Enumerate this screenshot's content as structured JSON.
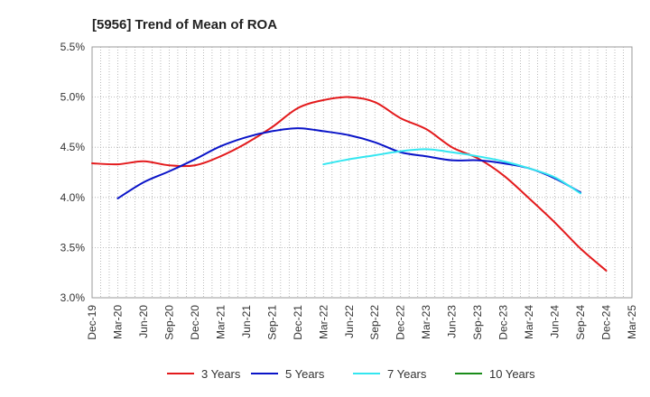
{
  "chart_data": {
    "type": "line",
    "title": "[5956]  Trend of Mean of ROA",
    "xlabel": "",
    "ylabel": "",
    "ylim": [
      3.0,
      5.5
    ],
    "y_ticks": [
      "3.0%",
      "3.5%",
      "4.0%",
      "4.5%",
      "5.0%",
      "5.5%"
    ],
    "y_tick_values": [
      3.0,
      3.5,
      4.0,
      4.5,
      5.0,
      5.5
    ],
    "x_ticks": [
      "Dec-19",
      "Mar-20",
      "Jun-20",
      "Sep-20",
      "Dec-20",
      "Mar-21",
      "Jun-21",
      "Sep-21",
      "Dec-21",
      "Mar-22",
      "Jun-22",
      "Sep-22",
      "Dec-22",
      "Mar-23",
      "Jun-23",
      "Sep-23",
      "Dec-23",
      "Mar-24",
      "Jun-24",
      "Sep-24",
      "Dec-24",
      "Mar-25"
    ],
    "grid": true,
    "legend_position": "bottom",
    "series": [
      {
        "name": "3 Years",
        "color": "#e31a1c",
        "start_index": 0,
        "values": [
          4.34,
          4.33,
          4.36,
          4.32,
          4.32,
          4.41,
          4.54,
          4.7,
          4.89,
          4.97,
          5.0,
          4.95,
          4.79,
          4.68,
          4.5,
          4.39,
          4.22,
          3.99,
          3.75,
          3.49,
          3.27
        ]
      },
      {
        "name": "5 Years",
        "color": "#0a14c8",
        "start_index": 1,
        "values": [
          3.99,
          4.15,
          4.26,
          4.38,
          4.51,
          4.6,
          4.66,
          4.69,
          4.66,
          4.62,
          4.55,
          4.45,
          4.41,
          4.37,
          4.37,
          4.34,
          4.29,
          4.19,
          4.05
        ]
      },
      {
        "name": "7 Years",
        "color": "#33e6f0",
        "start_index": 9,
        "values": [
          4.33,
          4.38,
          4.42,
          4.46,
          4.48,
          4.45,
          4.41,
          4.36,
          4.29,
          4.2,
          4.04
        ]
      },
      {
        "name": "10 Years",
        "color": "#1a8c1a",
        "start_index": 0,
        "values": []
      }
    ]
  }
}
